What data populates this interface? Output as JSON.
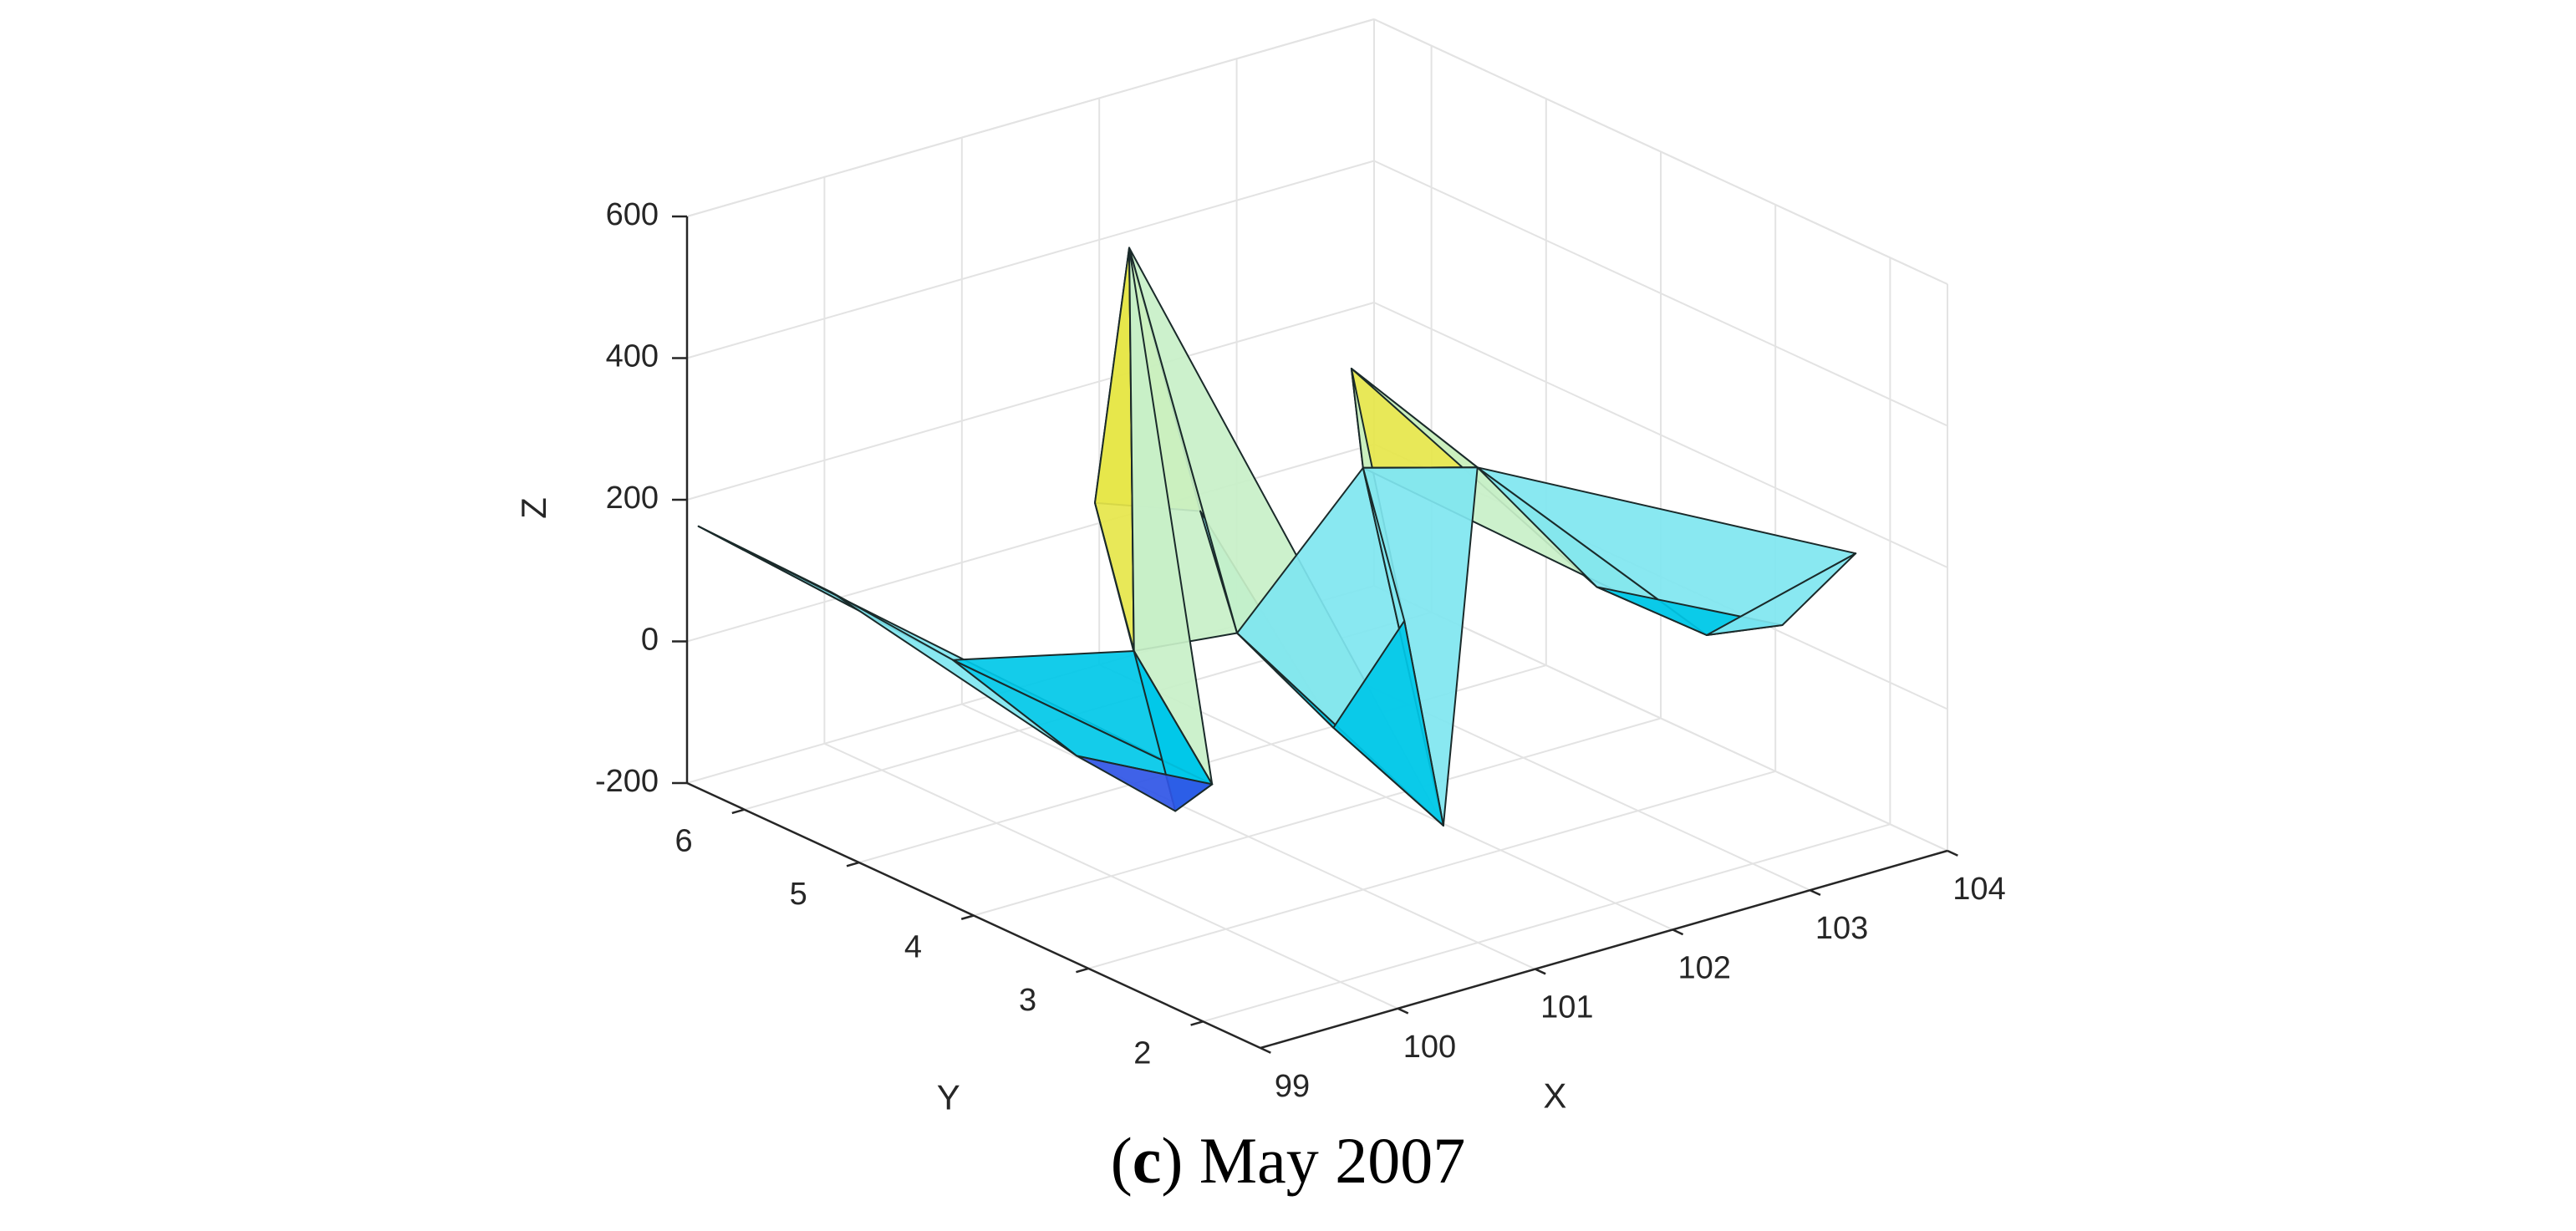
{
  "chart_data": {
    "type": "surface",
    "title": "",
    "xlabel": "X",
    "ylabel": "Y",
    "zlabel": "Z",
    "xlim": [
      99,
      104
    ],
    "ylim": [
      1.5,
      6.5
    ],
    "zlim": [
      -200,
      600
    ],
    "x_ticks": [
      "99",
      "100",
      "101",
      "102",
      "103",
      "104"
    ],
    "y_ticks": [
      "2",
      "3",
      "4",
      "5",
      "6"
    ],
    "z_ticks": [
      "-200",
      "0",
      "200",
      "400",
      "600"
    ],
    "grid": true,
    "colormap": [
      "#0000c8",
      "#2f55e6",
      "#00c8e8",
      "#7fe6f0",
      "#c8f0c8",
      "#e6e64a",
      "#f0c000",
      "#e65a00",
      "#c00000"
    ],
    "surface_points": [
      {
        "x": 99.0,
        "y": 6.4,
        "z": 170
      },
      {
        "x": 99.3,
        "y": 5.6,
        "z": 120
      },
      {
        "x": 99.6,
        "y": 4.9,
        "z": 60
      },
      {
        "x": 99.5,
        "y": 3.7,
        "z": 20
      },
      {
        "x": 99.9,
        "y": 3.0,
        "z": 10
      },
      {
        "x": 100.3,
        "y": 3.8,
        "z": -110
      },
      {
        "x": 100.5,
        "y": 4.4,
        "z": 60
      },
      {
        "x": 100.8,
        "y": 5.1,
        "z": 200
      },
      {
        "x": 101.3,
        "y": 5.4,
        "z": 510
      },
      {
        "x": 101.4,
        "y": 4.9,
        "z": 170
      },
      {
        "x": 101.0,
        "y": 4.1,
        "z": 80
      },
      {
        "x": 101.2,
        "y": 3.5,
        "z": -20
      },
      {
        "x": 101.5,
        "y": 2.9,
        "z": -130
      },
      {
        "x": 101.8,
        "y": 3.6,
        "z": 90
      },
      {
        "x": 102.0,
        "y": 4.2,
        "z": 250
      },
      {
        "x": 102.5,
        "y": 4.9,
        "z": 310
      },
      {
        "x": 103.0,
        "y": 4.4,
        "z": 180
      },
      {
        "x": 103.2,
        "y": 3.6,
        "z": 60
      },
      {
        "x": 103.5,
        "y": 3.0,
        "z": 20
      },
      {
        "x": 103.8,
        "y": 2.7,
        "z": 40
      },
      {
        "x": 104.0,
        "y": 2.3,
        "z": 160
      }
    ]
  },
  "caption": {
    "letter": "c",
    "open": "(",
    "close": ")",
    "text": " May 2007"
  }
}
